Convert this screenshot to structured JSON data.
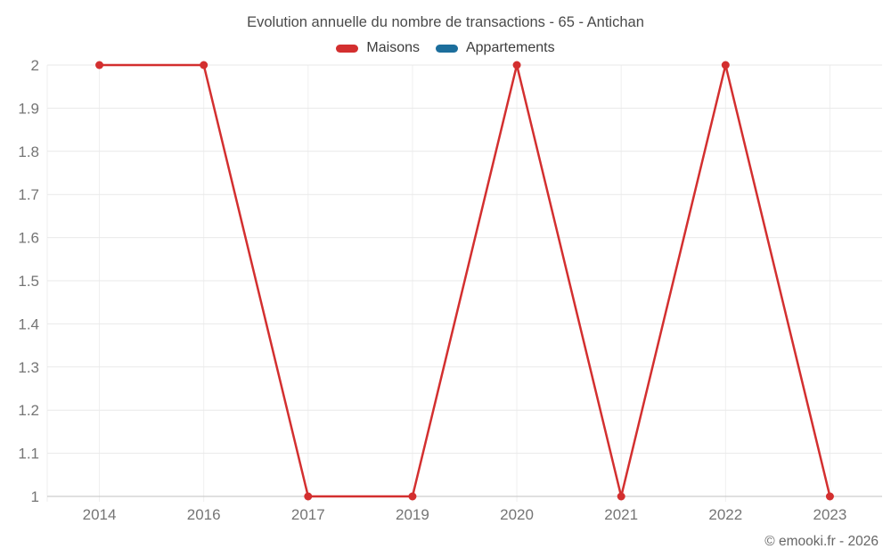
{
  "chart_data": {
    "type": "line",
    "title": "Evolution annuelle du nombre de transactions - 65 - Antichan",
    "categories": [
      "2014",
      "2016",
      "2017",
      "2019",
      "2020",
      "2021",
      "2022",
      "2023"
    ],
    "series": [
      {
        "name": "Maisons",
        "color": "#d32f2f",
        "values": [
          2,
          2,
          1,
          1,
          2,
          1,
          2,
          1
        ]
      },
      {
        "name": "Appartements",
        "color": "#1c6e9c",
        "values": []
      }
    ],
    "xlabel": "",
    "ylabel": "",
    "ylim": [
      1,
      2
    ],
    "ytick_step": 0.1,
    "grid": true,
    "legend_position": "top",
    "colors": {
      "gridline": "#e9e9e9",
      "vertical_gridline": "#efefef",
      "baseline": "#c2c2c2",
      "axis_label": "#757575"
    }
  },
  "footer": {
    "credit": "© emooki.fr - 2026"
  }
}
